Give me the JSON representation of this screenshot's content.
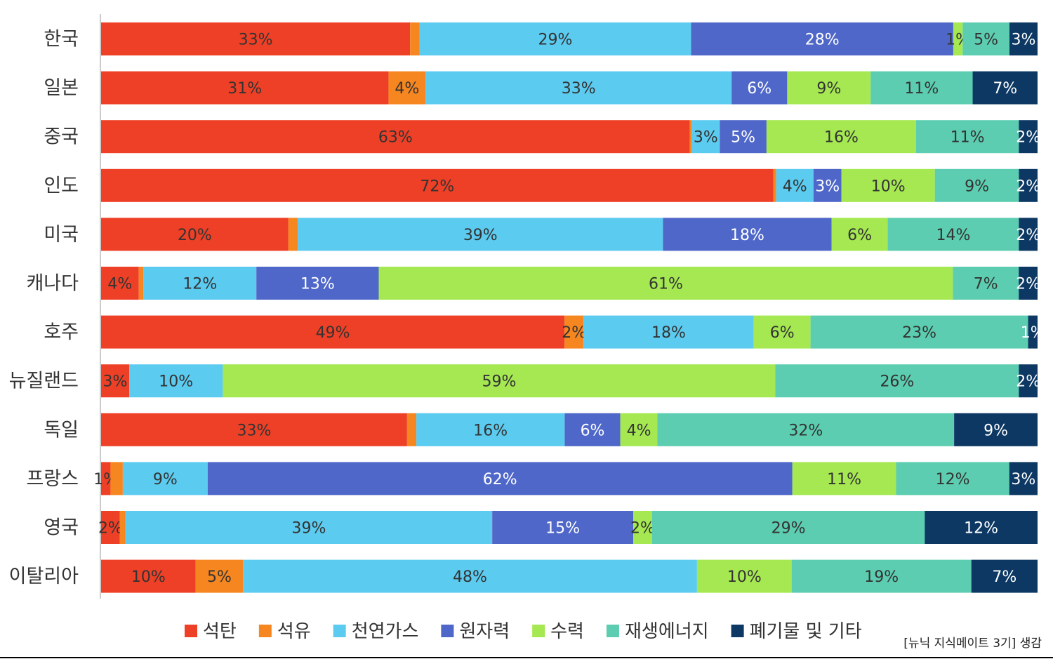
{
  "chart_data": {
    "type": "bar",
    "orientation": "horizontal",
    "stacked": true,
    "categories": [
      "한국",
      "일본",
      "중국",
      "인도",
      "미국",
      "캐나다",
      "호주",
      "뉴질랜드",
      "독일",
      "프랑스",
      "영국",
      "이탈리아"
    ],
    "series": [
      {
        "name": "석탄",
        "color": "#ee4026",
        "values": [
          33,
          31,
          63,
          72,
          20,
          4,
          49,
          3,
          33,
          1,
          2,
          10
        ],
        "labels": [
          "33%",
          "31%",
          "63%",
          "72%",
          "20%",
          "4%",
          "49%",
          "3%",
          "33%",
          "1%",
          "2%",
          "10%"
        ]
      },
      {
        "name": "석유",
        "color": "#f6861f",
        "values": [
          1,
          4,
          0.2,
          0.3,
          1,
          0.5,
          2,
          0,
          1,
          1.3,
          0.6,
          5
        ],
        "labels": [
          "",
          "4%",
          "",
          "",
          "",
          "",
          "2%",
          "",
          "",
          "",
          "",
          "5%"
        ]
      },
      {
        "name": "천연가스",
        "color": "#5ccbf0",
        "values": [
          29,
          33,
          3,
          4,
          39,
          12,
          18,
          10,
          16,
          9,
          39,
          48
        ],
        "labels": [
          "29%",
          "33%",
          "3%",
          "4%",
          "39%",
          "12%",
          "18%",
          "10%",
          "16%",
          "9%",
          "39%",
          "48%"
        ]
      },
      {
        "name": "원자력",
        "color": "#4f67c8",
        "values": [
          28,
          6,
          5,
          3,
          18,
          13,
          0,
          0,
          6,
          62,
          15,
          0
        ],
        "labels": [
          "28%",
          "6%",
          "5%",
          "3%",
          "18%",
          "13%",
          "",
          "",
          "6%",
          "62%",
          "15%",
          ""
        ]
      },
      {
        "name": "수력",
        "color": "#a5e851",
        "values": [
          1,
          9,
          16,
          10,
          6,
          61,
          6,
          59,
          4,
          11,
          2,
          10
        ],
        "labels": [
          "1%",
          "9%",
          "16%",
          "10%",
          "6%",
          "61%",
          "6%",
          "59%",
          "4%",
          "11%",
          "2%",
          "10%"
        ]
      },
      {
        "name": "재생에너지",
        "color": "#5ccdb0",
        "values": [
          5,
          11,
          11,
          9,
          14,
          7,
          23,
          26,
          32,
          12,
          29,
          19
        ],
        "labels": [
          "5%",
          "11%",
          "11%",
          "9%",
          "14%",
          "7%",
          "23%",
          "26%",
          "32%",
          "12%",
          "29%",
          "19%"
        ]
      },
      {
        "name": "폐기물 및 기타",
        "color": "#0c3863",
        "values": [
          3,
          7,
          2,
          2,
          2,
          2,
          1,
          2,
          9,
          3,
          12,
          7
        ],
        "labels": [
          "3%",
          "7%",
          "2%",
          "2%",
          "2%",
          "2%",
          "1%",
          "2%",
          "9%",
          "3%",
          "12%",
          "7%"
        ]
      }
    ],
    "legend_position": "bottom",
    "grid": false
  },
  "source_note": "[뉴닉 지식메이트 3기] 생감"
}
